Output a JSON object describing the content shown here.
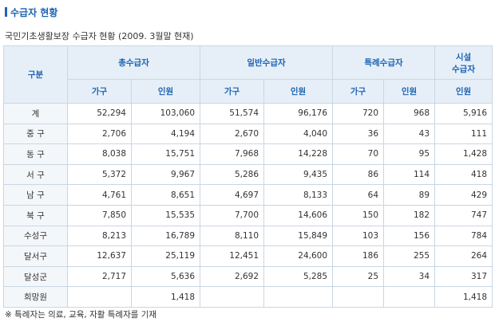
{
  "title": "수급자 현황",
  "subtitle": "국민기초생활보장 수급자 현황 (2009. 3월말 현재)",
  "table": {
    "col_group_header": "구분",
    "groups": [
      "총수급자",
      "일반수급자",
      "특례수급자"
    ],
    "facility_header": [
      "시설",
      "수급자"
    ],
    "sub_headers": [
      "가구",
      "인원",
      "가구",
      "인원",
      "가구",
      "인원",
      "인원"
    ],
    "rows": [
      {
        "label": "계",
        "values": [
          "52,294",
          "103,060",
          "51,574",
          "96,176",
          "720",
          "968",
          "5,916"
        ]
      },
      {
        "label": "중 구",
        "values": [
          "2,706",
          "4,194",
          "2,670",
          "4,040",
          "36",
          "43",
          "111"
        ]
      },
      {
        "label": "동 구",
        "values": [
          "8,038",
          "15,751",
          "7,968",
          "14,228",
          "70",
          "95",
          "1,428"
        ]
      },
      {
        "label": "서 구",
        "values": [
          "5,372",
          "9,967",
          "5,286",
          "9,435",
          "86",
          "114",
          "418"
        ]
      },
      {
        "label": "남 구",
        "values": [
          "4,761",
          "8,651",
          "4,697",
          "8,133",
          "64",
          "89",
          "429"
        ]
      },
      {
        "label": "북 구",
        "values": [
          "7,850",
          "15,535",
          "7,700",
          "14,606",
          "150",
          "182",
          "747"
        ]
      },
      {
        "label": "수성구",
        "values": [
          "8,213",
          "16,789",
          "8,110",
          "15,849",
          "103",
          "156",
          "784"
        ]
      },
      {
        "label": "달서구",
        "values": [
          "12,637",
          "25,119",
          "12,451",
          "24,600",
          "186",
          "255",
          "264"
        ]
      },
      {
        "label": "달성군",
        "values": [
          "2,717",
          "5,636",
          "2,692",
          "5,285",
          "25",
          "34",
          "317"
        ]
      },
      {
        "label": "희망원",
        "values": [
          "",
          "1,418",
          "",
          "",
          "",
          "",
          "1,418"
        ]
      }
    ]
  },
  "note": "※ 특례자는 의료, 교육, 자활 특례자를 기재",
  "colors": {
    "accent": "#1d64b4",
    "header_bg": "#e6eff8",
    "border": "#c9d6e3"
  }
}
